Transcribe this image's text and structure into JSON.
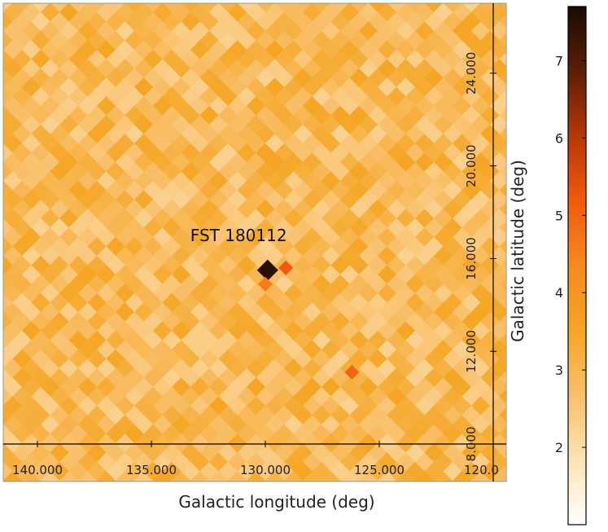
{
  "chart_data": {
    "type": "heatmap",
    "title": "",
    "xlabel": "Galactic longitude (deg)",
    "ylabel": "Galactic latitude (deg)",
    "xlim": [
      141.5,
      120.0
    ],
    "ylim": [
      8.0,
      26.0
    ],
    "x_ticks": [
      {
        "value": 140.0,
        "label": "140.000"
      },
      {
        "value": 135.0,
        "label": "135.000"
      },
      {
        "value": 130.0,
        "label": "130.000"
      },
      {
        "value": 125.0,
        "label": "125.000"
      },
      {
        "value": 120.0,
        "label": "120.0"
      }
    ],
    "y_ticks": [
      {
        "value": 8.0,
        "label": "8.000"
      },
      {
        "value": 12.0,
        "label": "12.000"
      },
      {
        "value": 16.0,
        "label": "16.000"
      },
      {
        "value": 20.0,
        "label": "20.000"
      },
      {
        "value": 24.0,
        "label": "24.000"
      }
    ],
    "colorbar": {
      "range": [
        1.0,
        7.7
      ],
      "ticks": [
        2,
        3,
        4,
        5,
        6,
        7
      ],
      "colormap": [
        "#ffffff",
        "#fde3b5",
        "#f9c06a",
        "#f5a623",
        "#f58a1f",
        "#f15a0e",
        "#b63708",
        "#5c1e06",
        "#1a0a04"
      ]
    },
    "background_level": 2.9,
    "annotations": [
      {
        "text": "FST 180112",
        "x": 130.6,
        "y": 17.0
      }
    ],
    "sources": [
      {
        "name": "FST 180112",
        "x": 129.9,
        "y": 15.5,
        "value": 7.5
      },
      {
        "x": 129.1,
        "y": 15.6,
        "value": 5.2
      },
      {
        "x": 130.0,
        "y": 14.9,
        "value": 4.6
      },
      {
        "x": 126.2,
        "y": 11.1,
        "value": 5.0
      }
    ]
  }
}
